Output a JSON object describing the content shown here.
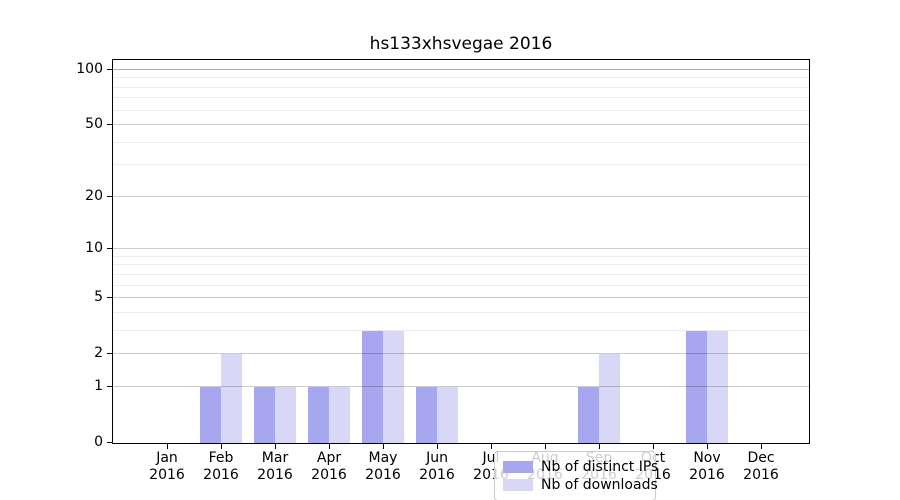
{
  "figure": {
    "background": "#ffffff",
    "axis_color": "#000000"
  },
  "colors": {
    "distinct_ips_bar": "#a7a7f0",
    "downloads_bar": "#d8d8f6",
    "grid_major": "rgba(0,0,0,0.20)",
    "grid_minor": "rgba(0,0,0,0.08)",
    "grid_top": "rgba(0,0,0,0.30)",
    "legend_border": "#cccccc"
  },
  "chart_data": {
    "type": "bar",
    "title": "hs133xhsvegae 2016",
    "categories": [
      "Jan 2016",
      "Feb 2016",
      "Mar 2016",
      "Apr 2016",
      "May 2016",
      "Jun 2016",
      "Jul 2016",
      "Aug 2016",
      "Sep 2016",
      "Oct 2016",
      "Nov 2016",
      "Dec 2016"
    ],
    "series": [
      {
        "name": "Nb of distinct IPs",
        "color": "#a7a7f0",
        "values": [
          0,
          1,
          1,
          1,
          3,
          1,
          0,
          0,
          1,
          0,
          3,
          0
        ]
      },
      {
        "name": "Nb of downloads",
        "color": "#d8d8f6",
        "values": [
          0,
          2,
          1,
          1,
          3,
          1,
          0,
          0,
          2,
          0,
          3,
          0
        ]
      }
    ],
    "xlabel": "",
    "ylabel": "",
    "yscale": "log(1+x)",
    "ylim": [
      0,
      113
    ],
    "yticks": [
      0,
      1,
      2,
      5,
      10,
      20,
      50,
      100
    ],
    "yticks_minor": [
      3,
      4,
      6,
      7,
      8,
      9,
      30,
      40,
      60,
      70,
      80,
      90
    ],
    "grid": true,
    "legend_position": "inside-bottom-center"
  }
}
